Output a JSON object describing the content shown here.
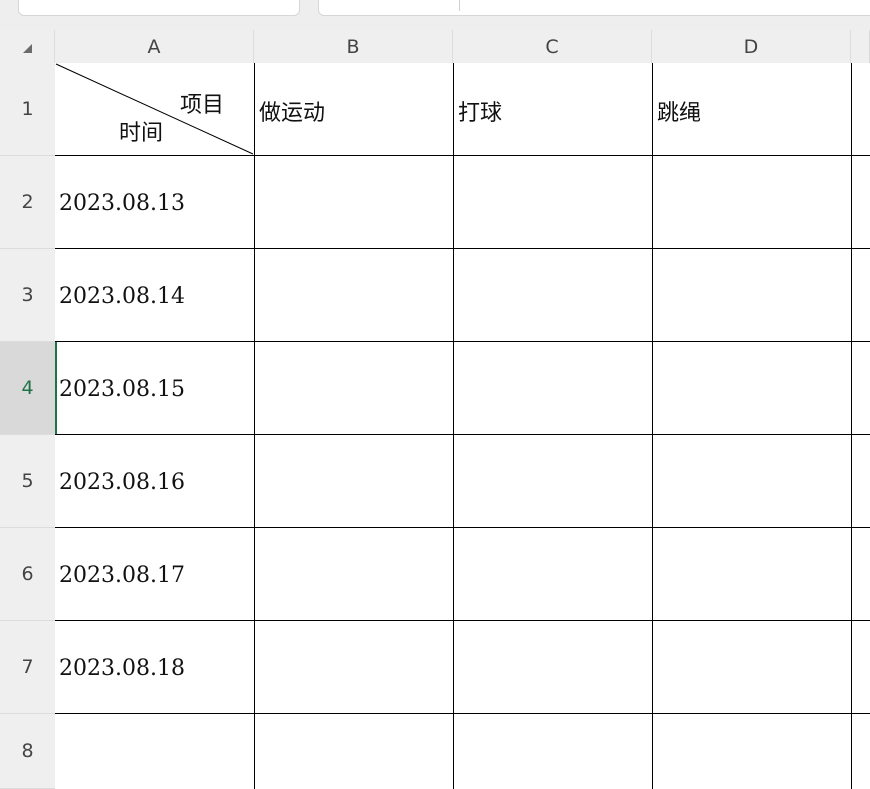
{
  "columns": [
    "A",
    "B",
    "C",
    "D"
  ],
  "rows": [
    "1",
    "2",
    "3",
    "4",
    "5",
    "6",
    "7",
    "8"
  ],
  "active_row": "4",
  "header_cell": {
    "top_right": "项目",
    "bottom_left": "时间"
  },
  "items": [
    "做运动",
    "打球",
    "跳绳"
  ],
  "dates": [
    "2023.08.13",
    "2023.08.14",
    "2023.08.15",
    "2023.08.16",
    "2023.08.17",
    "2023.08.18"
  ],
  "colors": {
    "accent": "#217346"
  }
}
